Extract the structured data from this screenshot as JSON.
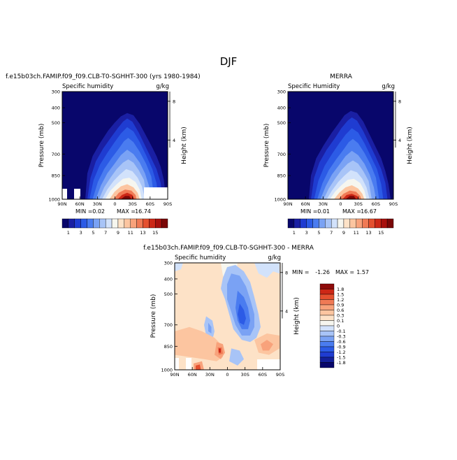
{
  "page": {
    "title": "DJF"
  },
  "colorbar_abs": {
    "colors": [
      "#08066b",
      "#1a1fa3",
      "#1f3cd1",
      "#2c5be6",
      "#4a7cf0",
      "#7aa2f4",
      "#a8c4f7",
      "#d2e2fb",
      "#f6f6ef",
      "#fde2c7",
      "#fcc5a0",
      "#f8a27b",
      "#f07a55",
      "#e4502f",
      "#cc2716",
      "#a8100d",
      "#7a0707"
    ],
    "labels": [
      "1",
      "3",
      "5",
      "7",
      "9",
      "11",
      "13",
      "15"
    ]
  },
  "colorbar_diff": {
    "colors": [
      "#08066b",
      "#14209a",
      "#1f3cd1",
      "#2c5be6",
      "#4a7cf0",
      "#7aa2f4",
      "#a8c4f7",
      "#d2e2fb",
      "#f6f6ef",
      "#fde2c7",
      "#fcc5a0",
      "#f8a27b",
      "#f07a55",
      "#e4502f",
      "#cc2716",
      "#8e0b0a"
    ],
    "labels": [
      "1.8",
      "1.5",
      "1.2",
      "0.9",
      "0.6",
      "0.3",
      "0.1",
      "0",
      "-0.1",
      "-0.3",
      "-0.6",
      "-0.9",
      "-1.2",
      "-1.5",
      "-1.8"
    ]
  },
  "chart_data": [
    {
      "type": "heatmap",
      "panel": "left",
      "title": "f.e15b03ch.FAMIP.f09_f09.CLB-T0-SGHHT-300 (yrs 1980-1984)",
      "left_label": "Specific humidity",
      "right_label": "g/kg",
      "ylabel": "Pressure (mb)",
      "ylabel_right": "Height (km)",
      "x_ticks": [
        "90N",
        "60N",
        "30N",
        "0",
        "30S",
        "60S",
        "90S"
      ],
      "y_ticks": [
        "300",
        "400",
        "500",
        "700",
        "850",
        "1000"
      ],
      "y_ticks_right": [
        "8",
        "4"
      ],
      "min_text": "MIN =",
      "min_value": "0.02",
      "max_text": "MAX =",
      "max_value": "16.74"
    },
    {
      "type": "heatmap",
      "panel": "right",
      "title": "MERRA",
      "left_label": "Specific Humidity",
      "right_label": "g/kg",
      "ylabel": "Pressure (mb)",
      "ylabel_right": "Height (km)",
      "x_ticks": [
        "90N",
        "60N",
        "30N",
        "0",
        "30S",
        "60S",
        "90S"
      ],
      "y_ticks": [
        "300",
        "400",
        "500",
        "700",
        "850",
        "1000"
      ],
      "y_ticks_right": [
        "8",
        "4"
      ],
      "min_text": "MIN =",
      "min_value": "0.01",
      "max_text": "MAX =",
      "max_value": "16.67"
    },
    {
      "type": "heatmap",
      "panel": "bottom",
      "title": "f.e15b03ch.FAMIP.f09_f09.CLB-T0-SGHHT-300 - MERRA",
      "left_label": "Specific humidity",
      "right_label": "g/kg",
      "ylabel": "Pressure (mb)",
      "ylabel_right": "Height (km)",
      "x_ticks": [
        "90N",
        "60N",
        "30N",
        "0",
        "30S",
        "60S",
        "90S"
      ],
      "y_ticks": [
        "300",
        "400",
        "500",
        "700",
        "850",
        "1000"
      ],
      "y_ticks_right": [
        "8",
        "4"
      ],
      "min_text": "MIN =",
      "min_value": "-1.26",
      "max_text": "MAX =",
      "max_value": "1.57"
    }
  ]
}
